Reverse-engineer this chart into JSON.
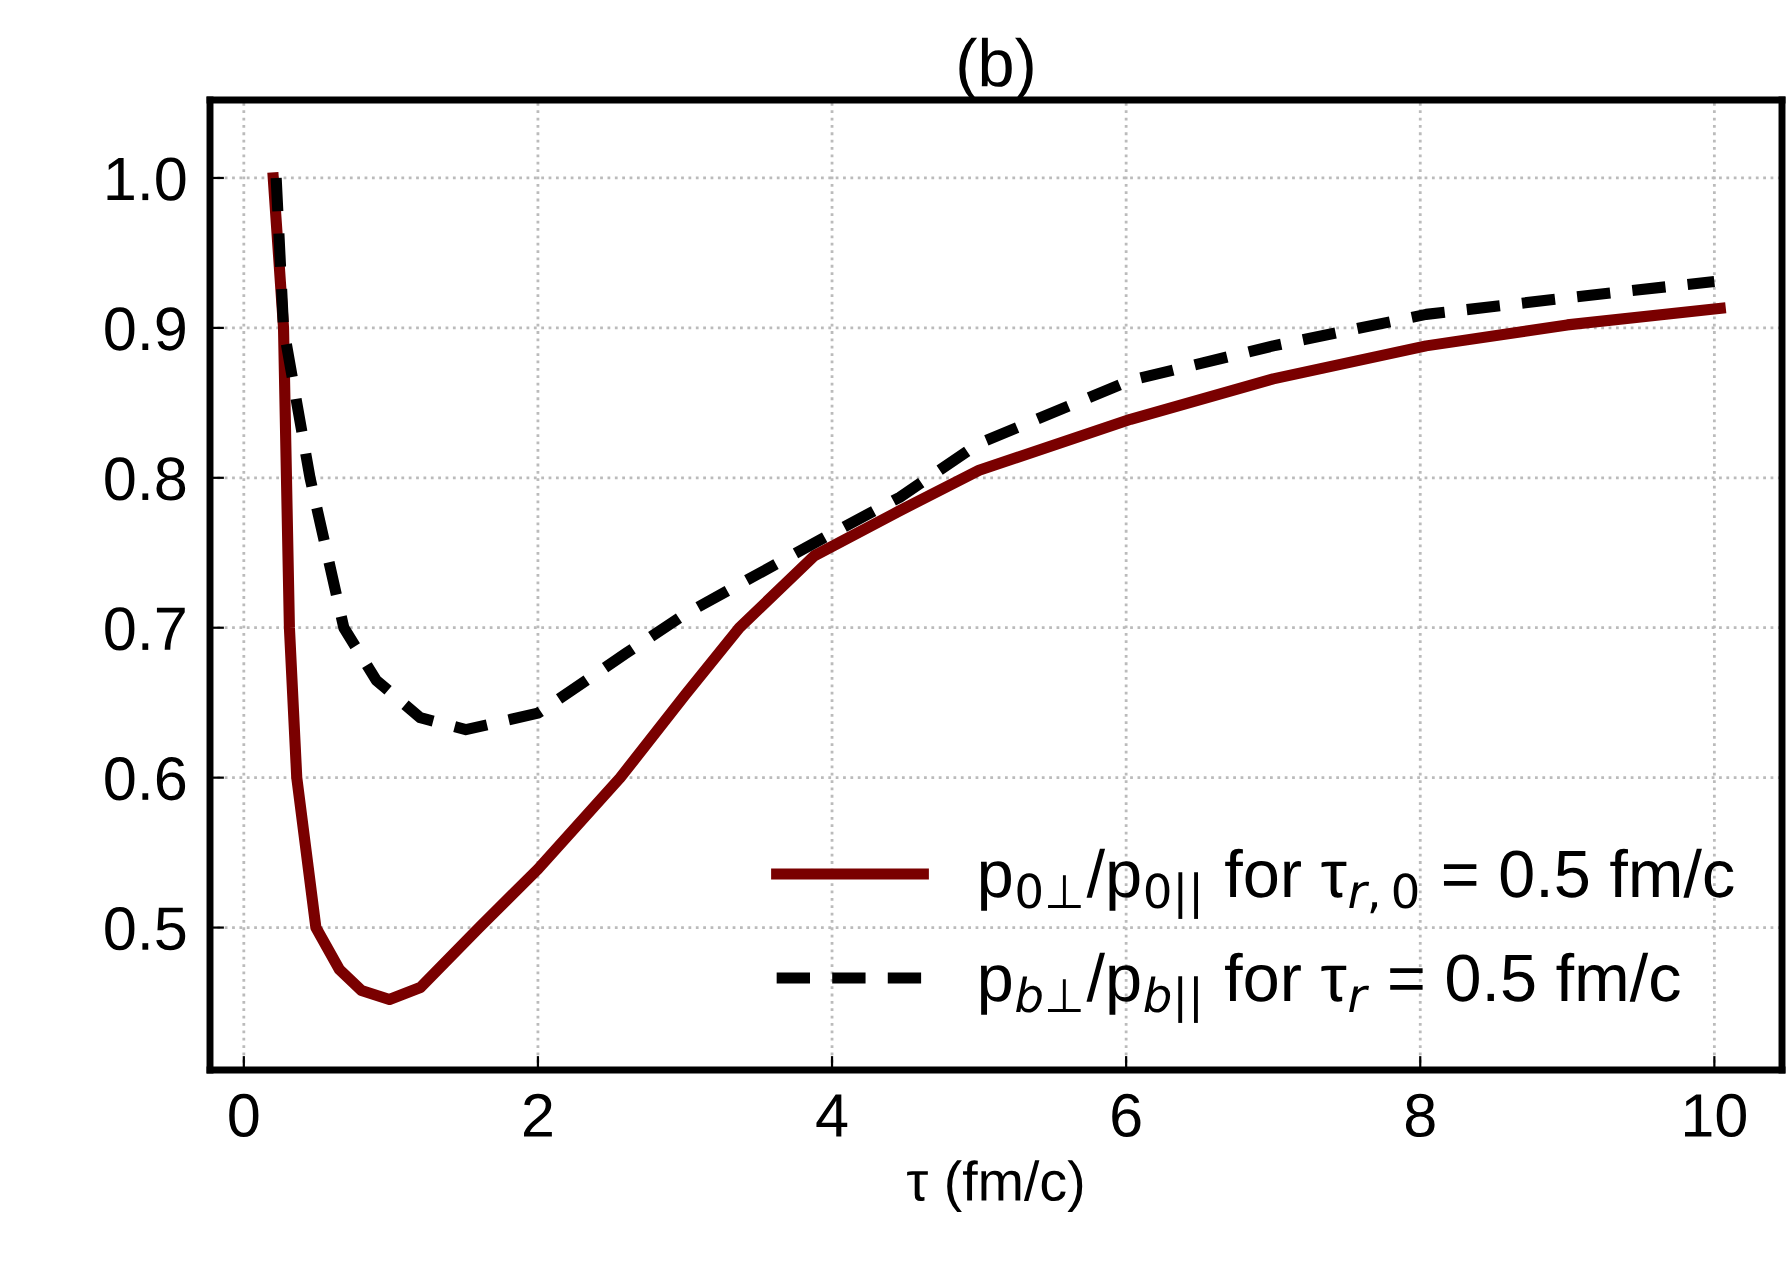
{
  "chart_data": {
    "type": "line",
    "title": "(b)",
    "xlabel": "τ (fm/c)",
    "xlim": [
      -0.23,
      10.46
    ],
    "ylim": [
      0.405,
      1.052
    ],
    "xticks": [
      0,
      2,
      4,
      6,
      8,
      10
    ],
    "yticks": [
      0.5,
      0.6,
      0.7,
      0.8,
      0.9,
      {
        "value": 1.0,
        "label": "1.0"
      }
    ],
    "grid": true,
    "legend": "bottom right",
    "series": [
      {
        "name": "p$_{0⊥}$/p$_{0||}$ for τ$_{r,0}$ = 0.5 fm/c",
        "color": "#7a0000",
        "line_style": "solid",
        "x": [
          0.2,
          0.27,
          0.29,
          0.31,
          0.36,
          0.49,
          0.65,
          0.8,
          0.99,
          1.2,
          1.6,
          2.0,
          2.56,
          3.0,
          3.37,
          3.88,
          4.46,
          5.0,
          6.03,
          7.0,
          8.04,
          9.0,
          10.04
        ],
        "values": [
          1.0,
          0.9,
          0.8,
          0.7,
          0.6,
          0.5,
          0.472,
          0.458,
          0.452,
          0.46,
          0.5,
          0.539,
          0.6,
          0.655,
          0.7,
          0.748,
          0.778,
          0.805,
          0.839,
          0.866,
          0.888,
          0.902,
          0.913
        ]
      },
      {
        "name": "p$_{b⊥}$/p$_{b||}$ for τ$_{r}$ = 0.5 fm/c",
        "color": "#000000",
        "line_style": "dashed",
        "x": [
          0.22,
          0.27,
          0.45,
          0.68,
          0.9,
          1.2,
          1.51,
          2.0,
          2.6,
          3.0,
          4.0,
          4.46,
          5.0,
          6.03,
          7.0,
          8.04,
          9.0,
          10.0
        ],
        "values": [
          1.0,
          0.9,
          0.8,
          0.7,
          0.665,
          0.64,
          0.632,
          0.643,
          0.683,
          0.709,
          0.763,
          0.787,
          0.823,
          0.865,
          0.888,
          0.909,
          0.92,
          0.931
        ]
      }
    ]
  }
}
